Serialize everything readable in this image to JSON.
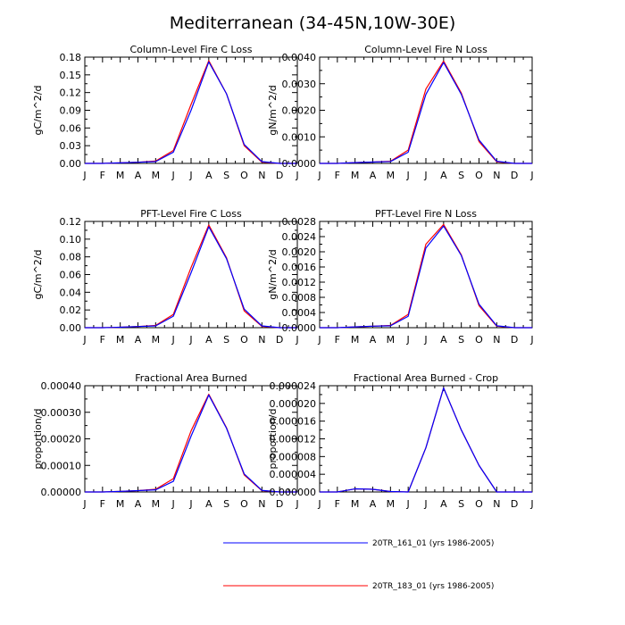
{
  "figure": {
    "title": "Mediterranean (34-45N,10W-30E)",
    "legend": [
      {
        "label": "20TR_161_01 (yrs 1986-2005)",
        "color": "#0000ff"
      },
      {
        "label": "20TR_183_01 (yrs 1986-2005)",
        "color": "#ff0000"
      }
    ]
  },
  "chart_data": [
    {
      "type": "line",
      "title": "Column-Level Fire C Loss",
      "ylabel": "gC/m^2/d",
      "xlabel": "",
      "x": [
        "J",
        "F",
        "M",
        "A",
        "M",
        "J",
        "J",
        "A",
        "S",
        "O",
        "N",
        "D",
        "J"
      ],
      "ylim": [
        0,
        0.18
      ],
      "yticks": [
        "0.00",
        "0.03",
        "0.06",
        "0.09",
        "0.12",
        "0.15",
        "0.18"
      ],
      "series": [
        {
          "name": "20TR_161_01 (yrs 1986-2005)",
          "color": "#0000ff",
          "values": [
            0.0,
            0.0,
            0.001,
            0.002,
            0.003,
            0.019,
            0.09,
            0.172,
            0.118,
            0.032,
            0.003,
            0.0,
            0.0
          ]
        },
        {
          "name": "20TR_183_01 (yrs 1986-2005)",
          "color": "#ff0000",
          "values": [
            0.0,
            0.0,
            0.001,
            0.002,
            0.004,
            0.022,
            0.1,
            0.174,
            0.118,
            0.03,
            0.002,
            0.0,
            0.0
          ]
        }
      ]
    },
    {
      "type": "line",
      "title": "Column-Level Fire N Loss",
      "ylabel": "gN/m^2/d",
      "xlabel": "",
      "x": [
        "J",
        "F",
        "M",
        "A",
        "M",
        "J",
        "J",
        "A",
        "S",
        "O",
        "N",
        "D",
        "J"
      ],
      "ylim": [
        0,
        0.004
      ],
      "yticks": [
        "0.0000",
        "0.0010",
        "0.0020",
        "0.0030",
        "0.0040"
      ],
      "series": [
        {
          "name": "20TR_161_01 (yrs 1986-2005)",
          "color": "#0000ff",
          "values": [
            0.0,
            0.0,
            3e-05,
            5e-05,
            7e-05,
            0.00042,
            0.0026,
            0.0038,
            0.0026,
            0.00088,
            8e-05,
            0.0,
            0.0
          ]
        },
        {
          "name": "20TR_183_01 (yrs 1986-2005)",
          "color": "#ff0000",
          "values": [
            0.0,
            0.0,
            3e-05,
            5e-05,
            8e-05,
            0.0005,
            0.0028,
            0.00385,
            0.00265,
            0.00082,
            6e-05,
            0.0,
            0.0
          ]
        }
      ]
    },
    {
      "type": "line",
      "title": "PFT-Level Fire C Loss",
      "ylabel": "gC/m^2/d",
      "xlabel": "",
      "x": [
        "J",
        "F",
        "M",
        "A",
        "M",
        "J",
        "J",
        "A",
        "S",
        "O",
        "N",
        "D",
        "J"
      ],
      "ylim": [
        0,
        0.12
      ],
      "yticks": [
        "0.00",
        "0.02",
        "0.04",
        "0.06",
        "0.08",
        "0.10",
        "0.12"
      ],
      "series": [
        {
          "name": "20TR_161_01 (yrs 1986-2005)",
          "color": "#0000ff",
          "values": [
            0.0,
            0.0,
            0.0005,
            0.0013,
            0.002,
            0.013,
            0.062,
            0.114,
            0.078,
            0.021,
            0.002,
            0.0,
            0.0
          ]
        },
        {
          "name": "20TR_183_01 (yrs 1986-2005)",
          "color": "#ff0000",
          "values": [
            0.0,
            0.0,
            0.0005,
            0.0013,
            0.0025,
            0.015,
            0.068,
            0.116,
            0.079,
            0.019,
            0.0015,
            0.0,
            0.0
          ]
        }
      ]
    },
    {
      "type": "line",
      "title": "PFT-Level Fire N Loss",
      "ylabel": "gN/m^2/d",
      "xlabel": "",
      "x": [
        "J",
        "F",
        "M",
        "A",
        "M",
        "J",
        "J",
        "A",
        "S",
        "O",
        "N",
        "D",
        "J"
      ],
      "ylim": [
        0,
        0.0028
      ],
      "yticks": [
        "0.0000",
        "0.0004",
        "0.0008",
        "0.0012",
        "0.0016",
        "0.0020",
        "0.0024",
        "0.0028"
      ],
      "series": [
        {
          "name": "20TR_161_01 (yrs 1986-2005)",
          "color": "#0000ff",
          "values": [
            0.0,
            0.0,
            2e-05,
            4e-05,
            5e-05,
            0.0003,
            0.0021,
            0.00268,
            0.0019,
            0.00062,
            5e-05,
            0.0,
            0.0
          ]
        },
        {
          "name": "20TR_183_01 (yrs 1986-2005)",
          "color": "#ff0000",
          "values": [
            0.0,
            0.0,
            2e-05,
            4e-05,
            6e-05,
            0.00035,
            0.0022,
            0.00272,
            0.00192,
            0.00058,
            4e-05,
            0.0,
            0.0
          ]
        }
      ]
    },
    {
      "type": "line",
      "title": "Fractional Area Burned",
      "ylabel": "proportion/d",
      "xlabel": "",
      "x": [
        "J",
        "F",
        "M",
        "A",
        "M",
        "J",
        "J",
        "A",
        "S",
        "O",
        "N",
        "D",
        "J"
      ],
      "ylim": [
        0,
        0.0004
      ],
      "yticks": [
        "0.00000",
        "0.00010",
        "0.00020",
        "0.00030",
        "0.00040"
      ],
      "series": [
        {
          "name": "20TR_161_01 (yrs 1986-2005)",
          "color": "#0000ff",
          "values": [
            0.0,
            0.0,
            2e-06,
            5e-06,
            8e-06,
            4e-05,
            0.00021,
            0.000365,
            0.00024,
            6.8e-05,
            6e-06,
            0.0,
            0.0
          ]
        },
        {
          "name": "20TR_183_01 (yrs 1986-2005)",
          "color": "#ff0000",
          "values": [
            0.0,
            0.0,
            2e-06,
            5e-06,
            1e-05,
            5e-05,
            0.00023,
            0.000368,
            0.000242,
            6.4e-05,
            5e-06,
            0.0,
            0.0
          ]
        }
      ]
    },
    {
      "type": "line",
      "title": "Fractional Area Burned - Crop",
      "ylabel": "proportion/d",
      "xlabel": "",
      "x": [
        "J",
        "F",
        "M",
        "A",
        "M",
        "J",
        "J",
        "A",
        "S",
        "O",
        "N",
        "D",
        "J"
      ],
      "ylim": [
        0,
        2.4e-05
      ],
      "yticks": [
        "0.000000",
        "0.000004",
        "0.000008",
        "0.000012",
        "0.000016",
        "0.000020",
        "0.000024"
      ],
      "series": [
        {
          "name": "20TR_161_01 (yrs 1986-2005)",
          "color": "#0000ff",
          "values": [
            0.0,
            0.0,
            7e-07,
            6e-07,
            1e-07,
            0.0,
            1e-05,
            2.35e-05,
            1.4e-05,
            6e-06,
            0.0,
            0.0,
            0.0
          ]
        },
        {
          "name": "20TR_183_01 (yrs 1986-2005)",
          "color": "#ff0000",
          "values": [
            0.0,
            0.0,
            7e-07,
            6e-07,
            1e-07,
            0.0,
            1e-05,
            2.35e-05,
            1.4e-05,
            6e-06,
            0.0,
            0.0,
            0.0
          ]
        }
      ]
    }
  ]
}
